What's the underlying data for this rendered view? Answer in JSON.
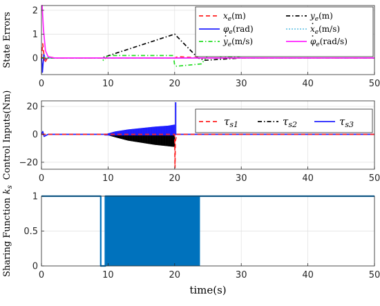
{
  "chart_data": [
    {
      "type": "line",
      "ylabel": "State Errors",
      "xlim": [
        0,
        50
      ],
      "ylim": [
        -0.7,
        2.2
      ],
      "xticks": [
        0,
        10,
        20,
        30,
        40,
        50
      ],
      "yticks": [
        0,
        1,
        2
      ],
      "grid": true,
      "legend_position": "top-right",
      "series": [
        {
          "name": "x_e(m)",
          "base": "x",
          "sub": "e",
          "dot": false,
          "unit": "(m)",
          "color": "#ff1f1f",
          "dash": "6,4",
          "x": [
            0,
            0.2,
            0.5,
            1,
            2,
            5,
            20,
            20.5,
            24,
            30,
            50
          ],
          "y": [
            0,
            0.6,
            -0.2,
            0.05,
            0,
            0,
            0,
            0.05,
            0,
            0,
            0
          ]
        },
        {
          "name": "y_e(m)",
          "base": "y",
          "sub": "e",
          "dot": false,
          "unit": "(m)",
          "color": "#000000",
          "dash": "6,3,1.5,3",
          "x": [
            0,
            9,
            20,
            23.5,
            24.5,
            30,
            50
          ],
          "y": [
            0,
            0,
            1.0,
            0,
            -0.1,
            0,
            0
          ]
        },
        {
          "name": "phi_e(rad)",
          "base": "φ",
          "sub": "e",
          "dot": false,
          "unit": "(rad)",
          "color": "#1f1fff",
          "dash": "",
          "x": [
            0,
            0.15,
            0.35,
            0.6,
            1,
            2,
            50
          ],
          "y": [
            0,
            -0.6,
            0.15,
            -0.05,
            0,
            0,
            0
          ]
        },
        {
          "name": "dx_e(m/s)",
          "base": "x",
          "sub": "e",
          "dot": true,
          "unit": "(m/s)",
          "color": "#70c8e8",
          "dash": "2,2",
          "x": [
            0,
            0.3,
            1,
            50
          ],
          "y": [
            0,
            0.05,
            0,
            0
          ]
        },
        {
          "name": "dy_e(m/s)",
          "base": "y",
          "sub": "e",
          "dot": true,
          "unit": "(m/s)",
          "color": "#22dd22",
          "dash": "6,3,1.5,3",
          "x": [
            0,
            9,
            9.3,
            10,
            19.8,
            20,
            20.3,
            24,
            25,
            26.5,
            27,
            29,
            30,
            50
          ],
          "y": [
            0,
            0,
            -0.1,
            0.1,
            0.1,
            -0.3,
            -0.35,
            -0.25,
            0.1,
            0.2,
            0,
            0.05,
            0,
            0
          ]
        },
        {
          "name": "dphi_e(rad/s)",
          "base": "φ",
          "sub": "e",
          "dot": true,
          "unit": "(rad/s)",
          "color": "#ff22ff",
          "dash": "",
          "x": [
            0,
            0.1,
            0.3,
            0.6,
            1,
            2,
            50
          ],
          "y": [
            2.2,
            2.2,
            1.2,
            0.3,
            0.05,
            0,
            0
          ]
        }
      ]
    },
    {
      "type": "line",
      "ylabel": "Control Inputs(Nm)",
      "xlim": [
        0,
        50
      ],
      "ylim": [
        -25,
        24
      ],
      "xticks": [
        0,
        10,
        20,
        30,
        40,
        50
      ],
      "yticks": [
        -20,
        0,
        20
      ],
      "grid": true,
      "legend_position": "top-right",
      "series": [
        {
          "name": "tau_s1",
          "base": "τ",
          "sub": "s1",
          "color": "#ff1f1f",
          "dash": "6,4",
          "x": [
            0,
            20,
            20.05,
            20.1,
            20.3,
            50
          ],
          "y": [
            0,
            0,
            -24,
            -5,
            0,
            0
          ]
        },
        {
          "name": "tau_s2",
          "base": "τ",
          "sub": "s2",
          "color": "#000000",
          "dash": "6,3,1.5,3",
          "envelope": {
            "x": [
              9.5,
              11,
              13,
              15,
              17,
              19,
              20
            ],
            "lower": [
              0,
              -2,
              -4.5,
              -6,
              -7.5,
              -8.5,
              -9
            ]
          }
        },
        {
          "name": "tau_s3",
          "base": "τ",
          "sub": "s3",
          "color": "#1f1fff",
          "dash": "",
          "x": [
            0,
            0.2,
            0.4,
            1,
            2,
            50
          ],
          "y": [
            0,
            2,
            -1.5,
            0,
            0,
            0
          ],
          "envelope": {
            "x": [
              9.5,
              11,
              13,
              15,
              17,
              19,
              20
            ],
            "upper": [
              0,
              2,
              3.5,
              4.5,
              5.5,
              6.2,
              7
            ]
          },
          "spike": {
            "x": 20.15,
            "y": 23
          }
        }
      ]
    },
    {
      "type": "line",
      "ylabel": "Sharing Function",
      "ylabel_k": "k",
      "ylabel_sub": "s",
      "xlabel": "time(s)",
      "xlim": [
        0,
        50
      ],
      "ylim": [
        0,
        1
      ],
      "xticks": [
        0,
        10,
        20,
        30,
        40,
        50
      ],
      "yticks": [
        0,
        0.5,
        1
      ],
      "grid": true,
      "series": [
        {
          "name": "k_s",
          "color": "#0072bd",
          "x": [
            0,
            8.9,
            8.9,
            9.6,
            9.6,
            50
          ],
          "y": [
            1,
            1,
            0,
            0,
            1,
            1
          ],
          "switching_band": [
            9.7,
            23.8
          ]
        }
      ]
    }
  ]
}
